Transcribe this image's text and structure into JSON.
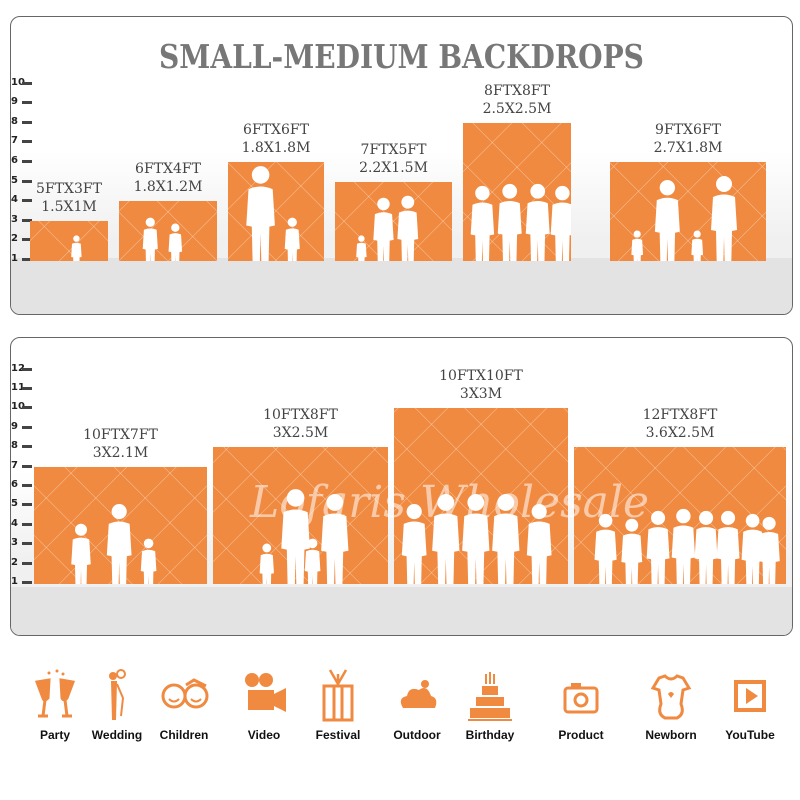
{
  "title": "SMALL-MEDIUM BACKDROPS",
  "watermark": "Lofaris Wholesale",
  "accent_color": "#f08a40",
  "top_scale": [
    "1",
    "2",
    "3",
    "4",
    "5",
    "6",
    "7",
    "8",
    "9",
    "10"
  ],
  "bottom_scale": [
    "1",
    "2",
    "3",
    "4",
    "5",
    "6",
    "7",
    "8",
    "9",
    "10",
    "11",
    "12"
  ],
  "top_sizes": [
    {
      "ft": "5FTX3FT",
      "m": "1.5X1M",
      "width_ft": 5,
      "height_ft": 3
    },
    {
      "ft": "6FTX4FT",
      "m": "1.8X1.2M",
      "width_ft": 6,
      "height_ft": 4
    },
    {
      "ft": "6FTX6FT",
      "m": "1.8X1.8M",
      "width_ft": 6,
      "height_ft": 6
    },
    {
      "ft": "7FTX5FT",
      "m": "2.2X1.5M",
      "width_ft": 7,
      "height_ft": 5
    },
    {
      "ft": "8FTX8FT",
      "m": "2.5X2.5M",
      "width_ft": 8,
      "height_ft": 8
    },
    {
      "ft": "9FTX6FT",
      "m": "2.7X1.8M",
      "width_ft": 9,
      "height_ft": 6
    }
  ],
  "bottom_sizes": [
    {
      "ft": "10FTX7FT",
      "m": "3X2.1M",
      "width_ft": 10,
      "height_ft": 7
    },
    {
      "ft": "10FTX8FT",
      "m": "3X2.5M",
      "width_ft": 10,
      "height_ft": 8
    },
    {
      "ft": "10FTX10FT",
      "m": "3X3M",
      "width_ft": 10,
      "height_ft": 10
    },
    {
      "ft": "12FTX8FT",
      "m": "3.6X2.5M",
      "width_ft": 12,
      "height_ft": 8
    }
  ],
  "uses": [
    {
      "label": "Party",
      "icon": "champagne-glasses-icon"
    },
    {
      "label": "Wedding",
      "icon": "wedding-couple-icon"
    },
    {
      "label": "Children",
      "icon": "children-faces-icon"
    },
    {
      "label": "Video",
      "icon": "film-camera-icon"
    },
    {
      "label": "Festival",
      "icon": "gift-box-icon"
    },
    {
      "label": "Outdoor",
      "icon": "cloud-icon"
    },
    {
      "label": "Birthday",
      "icon": "birthday-cake-icon"
    },
    {
      "label": "Product",
      "icon": "camera-icon"
    },
    {
      "label": "Newborn",
      "icon": "baby-onesie-icon"
    },
    {
      "label": "YouTube",
      "icon": "play-button-icon"
    }
  ]
}
